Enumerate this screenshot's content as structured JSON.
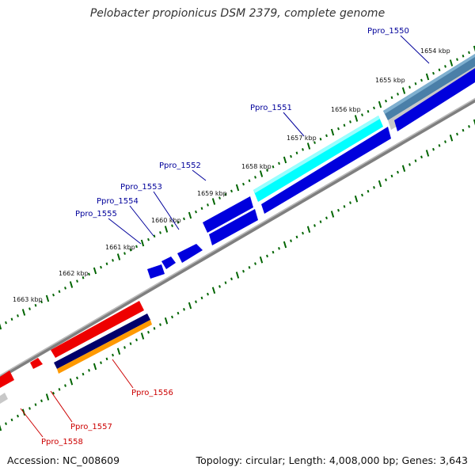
{
  "title": "Pelobacter propionicus DSM 2379, complete genome",
  "footer": {
    "accession": "Accession: NC_008609",
    "summary": "Topology: circular; Length: 4,008,000 bp; Genes: 3,643"
  },
  "colors": {
    "forward_label": "#00009a",
    "reverse_label": "#cc0000",
    "tick": "#006400",
    "backbone": "#808080"
  },
  "ticks": [
    "1654 kbp",
    "1655 kbp",
    "1656 kbp",
    "1657 kbp",
    "1658 kbp",
    "1659 kbp",
    "1660 kbp",
    "1661 kbp",
    "1662 kbp",
    "1663 kbp"
  ],
  "genes": [
    {
      "label": "Ppro_1550",
      "strand": "forward",
      "color": "#4a7fa8"
    },
    {
      "label": "Ppro_1551",
      "strand": "forward",
      "color": "#00ffff"
    },
    {
      "label": "Ppro_1552",
      "strand": "forward",
      "color": "#0000dd"
    },
    {
      "label": "Ppro_1553",
      "strand": "forward",
      "color": "#0000dd"
    },
    {
      "label": "Ppro_1554",
      "strand": "forward",
      "color": "#0000dd"
    },
    {
      "label": "Ppro_1555",
      "strand": "forward",
      "color": "#0000dd"
    },
    {
      "label": "Ppro_1556",
      "strand": "reverse",
      "color": "#ee0000"
    },
    {
      "label": "Ppro_1557",
      "strand": "reverse",
      "color": "#ee0000"
    },
    {
      "label": "Ppro_1558",
      "strand": "reverse",
      "color": "#ee0000"
    }
  ]
}
